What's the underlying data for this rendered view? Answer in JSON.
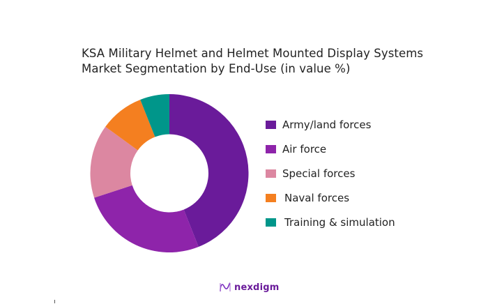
{
  "chart_data": {
    "type": "pie",
    "subtype": "donut",
    "title": "KSA Military Helmet and Helmet Mounted Display Systems Market Segmentation by End-Use (in value %)",
    "title_lines": [
      "KSA Military Helmet and Helmet Mounted Display Systems",
      "Market Segmentation by End-Use (in value %)"
    ],
    "categories": [
      "Army/land forces",
      "Air force",
      "Special forces",
      "Naval forces",
      "Training & simulation"
    ],
    "values": [
      44,
      26,
      15,
      9,
      6
    ],
    "colors": [
      "#6a1b9a",
      "#8e24aa",
      "#dc87a1",
      "#f47f20",
      "#00968a"
    ],
    "start_angle": "12 o'clock, clockwise",
    "legend_position": "right",
    "data_labels": false
  },
  "legend": {
    "items": [
      {
        "label": "Army/land forces",
        "color": "#6a1b9a"
      },
      {
        "label": "Air force",
        "color": "#8e24aa"
      },
      {
        "label": "Special forces",
        "color": "#dc87a1"
      },
      {
        "label": "Naval forces",
        "color": "#f47f20"
      },
      {
        "label": "Training & simulation",
        "color": "#00968a"
      }
    ]
  },
  "branding": {
    "logo_text": "nexdigm",
    "logo_icon": "nexdigm-wave-icon",
    "color": "#6a1b9a"
  }
}
